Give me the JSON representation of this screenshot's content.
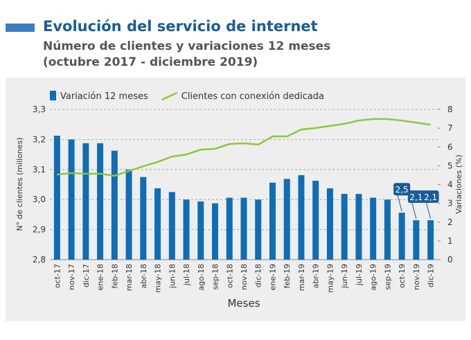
{
  "chart_data": {
    "type": "bar_line",
    "title": "Evolución del servicio de internet",
    "subtitle": [
      "Número de clientes y variaciones 12 meses",
      "(octubre 2017 - diciembre 2019)"
    ],
    "ylabel": "N° de clientes (millones)",
    "y2label": "Variaciones (%)",
    "xlabel": "Meses",
    "categories": [
      "oct-17",
      "nov-17",
      "dic-17",
      "ene-18",
      "feb-18",
      "mar-18",
      "abr-18",
      "may-18",
      "jun-18",
      "jul-18",
      "ago-18",
      "sep-18",
      "oct-18",
      "nov-18",
      "dic-18",
      "ene-19",
      "feb-19",
      "mar-19",
      "abr-19",
      "may-19",
      "jun-19",
      "jul-19",
      "ago-19",
      "sep-19",
      "oct-19",
      "nov-19",
      "dic-19"
    ],
    "series": [
      {
        "name": "Variación 12 meses",
        "type": "bar",
        "axis": "y2",
        "color": "#0f6db5",
        "values": [
          6.6,
          6.4,
          6.2,
          6.2,
          5.8,
          4.8,
          4.4,
          3.8,
          3.6,
          3.2,
          3.1,
          3.0,
          3.3,
          3.3,
          3.2,
          4.1,
          4.3,
          4.5,
          4.2,
          3.8,
          3.5,
          3.5,
          3.3,
          3.2,
          2.5,
          2.1,
          2.1
        ],
        "value_labels": [
          null,
          null,
          null,
          null,
          null,
          null,
          null,
          null,
          null,
          null,
          null,
          null,
          null,
          null,
          null,
          null,
          null,
          null,
          null,
          null,
          null,
          null,
          null,
          null,
          "2,5",
          "2,1",
          "2,1"
        ]
      },
      {
        "name": "Clientes con conexión dedicada",
        "type": "line",
        "axis": "y",
        "color": "#8dc63f",
        "values": [
          3.083,
          3.088,
          3.086,
          3.086,
          3.079,
          3.095,
          3.111,
          3.125,
          3.143,
          3.15,
          3.166,
          3.169,
          3.185,
          3.187,
          3.183,
          3.21,
          3.21,
          3.233,
          3.238,
          3.245,
          3.252,
          3.263,
          3.268,
          3.268,
          3.263,
          3.256,
          3.249
        ]
      }
    ],
    "ylim": [
      2.8,
      3.3
    ],
    "yticks": [
      {
        "value": 2.8,
        "label": "2,8"
      },
      {
        "value": 2.9,
        "label": "2,9"
      },
      {
        "value": 3.0,
        "label": "3,0"
      },
      {
        "value": 3.1,
        "label": "3,1"
      },
      {
        "value": 3.2,
        "label": "3,2"
      },
      {
        "value": 3.3,
        "label": "3,3"
      }
    ],
    "y2lim": [
      0,
      8
    ],
    "y2ticks": [
      0,
      1,
      2,
      3,
      4,
      5,
      6,
      7,
      8
    ],
    "grid": true
  }
}
